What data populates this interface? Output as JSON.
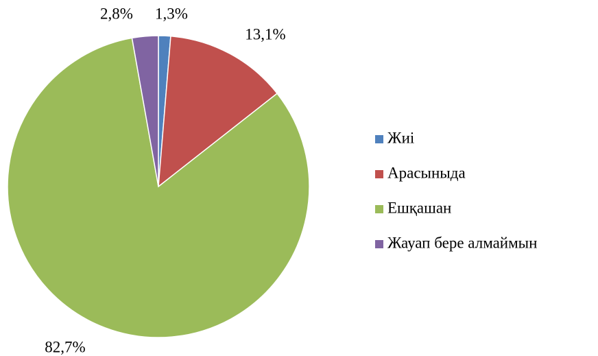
{
  "chart_data": {
    "type": "pie",
    "categories": [
      "Жиі",
      "Арасыныда",
      "Ешқашан",
      "Жауап бере алмаймын"
    ],
    "values": [
      1.3,
      13.1,
      82.7,
      2.8
    ],
    "value_labels": [
      "1,3%",
      "13,1%",
      "82,7%",
      "2,8%"
    ],
    "colors": [
      "#4f81bd",
      "#c0504d",
      "#9bbb59",
      "#8064a2"
    ],
    "legend": "right"
  }
}
